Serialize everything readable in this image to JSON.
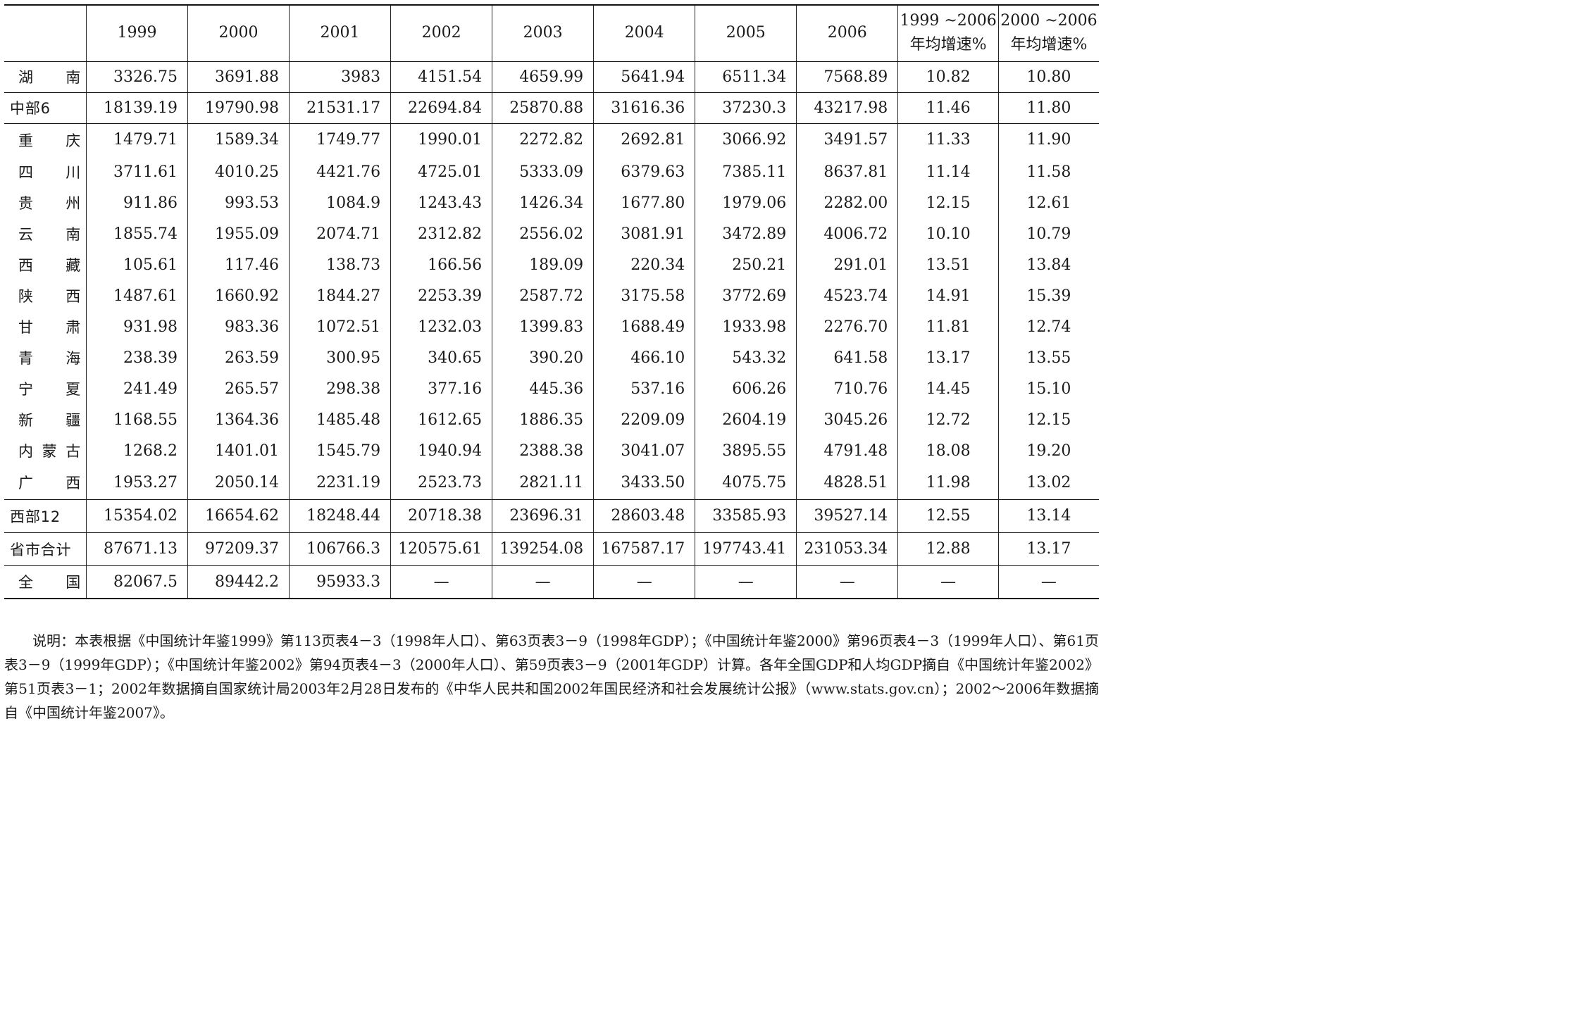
{
  "table": {
    "header": {
      "corner": "",
      "years": [
        "1999",
        "2000",
        "2001",
        "2002",
        "2003",
        "2004",
        "2005",
        "2006"
      ],
      "growth1": {
        "line1": "1999 ~2006",
        "line2": "年均增速%"
      },
      "growth2": {
        "line1": "2000 ~2006",
        "line2": "年均增速%"
      }
    },
    "rows": [
      {
        "label": "湖　南",
        "values": [
          "3326.75",
          "3691.88",
          "3983",
          "4151.54",
          "4659.99",
          "5641.94",
          "6511.34",
          "7568.89",
          "10.82",
          "10.80"
        ]
      },
      {
        "label": "中部6",
        "values": [
          "18139.19",
          "19790.98",
          "21531.17",
          "22694.84",
          "25870.88",
          "31616.36",
          "37230.3",
          "43217.98",
          "11.46",
          "11.80"
        ]
      },
      {
        "label": "重　庆",
        "values": [
          "1479.71",
          "1589.34",
          "1749.77",
          "1990.01",
          "2272.82",
          "2692.81",
          "3066.92",
          "3491.57",
          "11.33",
          "11.90"
        ]
      },
      {
        "label": "四　川",
        "values": [
          "3711.61",
          "4010.25",
          "4421.76",
          "4725.01",
          "5333.09",
          "6379.63",
          "7385.11",
          "8637.81",
          "11.14",
          "11.58"
        ]
      },
      {
        "label": "贵　州",
        "values": [
          "911.86",
          "993.53",
          "1084.9",
          "1243.43",
          "1426.34",
          "1677.80",
          "1979.06",
          "2282.00",
          "12.15",
          "12.61"
        ]
      },
      {
        "label": "云　南",
        "values": [
          "1855.74",
          "1955.09",
          "2074.71",
          "2312.82",
          "2556.02",
          "3081.91",
          "3472.89",
          "4006.72",
          "10.10",
          "10.79"
        ]
      },
      {
        "label": "西　藏",
        "values": [
          "105.61",
          "117.46",
          "138.73",
          "166.56",
          "189.09",
          "220.34",
          "250.21",
          "291.01",
          "13.51",
          "13.84"
        ]
      },
      {
        "label": "陕　西",
        "values": [
          "1487.61",
          "1660.92",
          "1844.27",
          "2253.39",
          "2587.72",
          "3175.58",
          "3772.69",
          "4523.74",
          "14.91",
          "15.39"
        ]
      },
      {
        "label": "甘　肃",
        "values": [
          "931.98",
          "983.36",
          "1072.51",
          "1232.03",
          "1399.83",
          "1688.49",
          "1933.98",
          "2276.70",
          "11.81",
          "12.74"
        ]
      },
      {
        "label": "青　海",
        "values": [
          "238.39",
          "263.59",
          "300.95",
          "340.65",
          "390.20",
          "466.10",
          "543.32",
          "641.58",
          "13.17",
          "13.55"
        ]
      },
      {
        "label": "宁　夏",
        "values": [
          "241.49",
          "265.57",
          "298.38",
          "377.16",
          "445.36",
          "537.16",
          "606.26",
          "710.76",
          "14.45",
          "15.10"
        ]
      },
      {
        "label": "新　疆",
        "values": [
          "1168.55",
          "1364.36",
          "1485.48",
          "1612.65",
          "1886.35",
          "2209.09",
          "2604.19",
          "3045.26",
          "12.72",
          "12.15"
        ]
      },
      {
        "label": "内蒙古",
        "values": [
          "1268.2",
          "1401.01",
          "1545.79",
          "1940.94",
          "2388.38",
          "3041.07",
          "3895.55",
          "4791.48",
          "18.08",
          "19.20"
        ]
      },
      {
        "label": "广　西",
        "values": [
          "1953.27",
          "2050.14",
          "2231.19",
          "2523.73",
          "2821.11",
          "3433.50",
          "4075.75",
          "4828.51",
          "11.98",
          "13.02"
        ]
      },
      {
        "label": "西部12",
        "values": [
          "15354.02",
          "16654.62",
          "18248.44",
          "20718.38",
          "23696.31",
          "28603.48",
          "33585.93",
          "39527.14",
          "12.55",
          "13.14"
        ]
      },
      {
        "label": "省市合计",
        "values": [
          "87671.13",
          "97209.37",
          "106766.3",
          "120575.61",
          "139254.08",
          "167587.17",
          "197743.41",
          "231053.34",
          "12.88",
          "13.17"
        ]
      },
      {
        "label": "全　国",
        "values": [
          "82067.5",
          "89442.2",
          "95933.3",
          "—",
          "—",
          "—",
          "—",
          "—",
          "—",
          "—"
        ]
      }
    ]
  },
  "note": "说明：本表根据《中国统计年鉴1999》第113页表4－3（1998年人口）、第63页表3－9（1998年GDP）；《中国统计年鉴2000》第96页表4－3（1999年人口）、第61页表3－9（1999年GDP）；《中国统计年鉴2002》第94页表4－3（2000年人口）、第59页表3－9（2001年GDP）计算。各年全国GDP和人均GDP摘自《中国统计年鉴2002》第51页表3－1；2002年数据摘自国家统计局2003年2月28日发布的《中华人民共和国2002年国民经济和社会发展统计公报》（www.stats.gov.cn）；2002～2006年数据摘自《中国统计年鉴2007》。"
}
